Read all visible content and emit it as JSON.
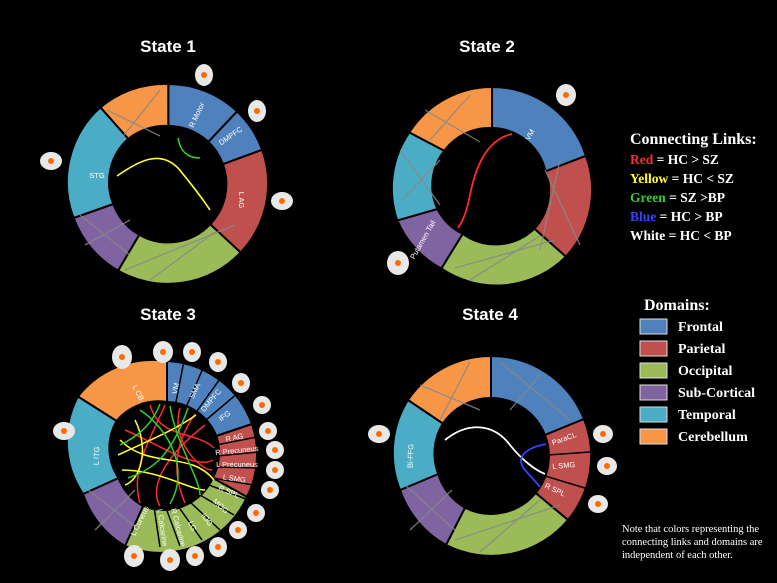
{
  "states": [
    {
      "title": "State 1",
      "labels": {
        "motor": "R Motor",
        "dmpfc": "DMPFC",
        "lag": "L AG",
        "stg": "STG"
      }
    },
    {
      "title": "State 2",
      "labels": {
        "vm": "VM",
        "putamen": "Putamen Tail"
      }
    },
    {
      "title": "State 3",
      "labels": {
        "lcb": "L CB",
        "vm": "VM",
        "sma": "SMA",
        "dmpfc": "DMPFC",
        "ifg": "IFG",
        "rag": "R AG",
        "rprecuneus": "R Precuneus",
        "lprecuneus": "L Precuneus",
        "lsmg": "L SMG",
        "rspl": "R SPL",
        "mog": "MOG",
        "iog": "IOG",
        "lg": "LG",
        "rcalcarine": "R Calcarine",
        "lcalcarine": "L Calcarine",
        "lcuneus": "L Cuneus",
        "litg": "L ITG"
      }
    },
    {
      "title": "State 4",
      "labels": {
        "bi_ffg": "Bi-FFG",
        "paracl": "ParaCL",
        "lsmg": "L SMG",
        "rspl": "R SPL"
      }
    }
  ],
  "connecting_links": {
    "heading": "Connecting Links:",
    "items": [
      {
        "color_word": "Red",
        "rest": " = HC > SZ",
        "color": "#ff2b2b"
      },
      {
        "color_word": "Yellow",
        "rest": " = HC < SZ",
        "color": "#ffff33"
      },
      {
        "color_word": "Green",
        "rest": " = SZ >BP",
        "color": "#33cc33"
      },
      {
        "color_word": "Blue",
        "rest": " = HC > BP",
        "color": "#3344ff"
      },
      {
        "color_word": "White",
        "rest": " = HC < BP",
        "color": "#ffffff"
      }
    ]
  },
  "domains": {
    "heading": "Domains:",
    "items": [
      {
        "label": "Frontal",
        "color": "#4f81bd"
      },
      {
        "label": "Parietal",
        "color": "#c0504d"
      },
      {
        "label": "Occipital",
        "color": "#9bbb59"
      },
      {
        "label": "Sub-Cortical",
        "color": "#8064a2"
      },
      {
        "label": "Temporal",
        "color": "#4bacc6"
      },
      {
        "label": "Cerebellum",
        "color": "#f79646"
      }
    ]
  },
  "note": {
    "line1": "Note that colors representing the",
    "line2": "connecting links and domains are",
    "line3": "independent of each other."
  }
}
